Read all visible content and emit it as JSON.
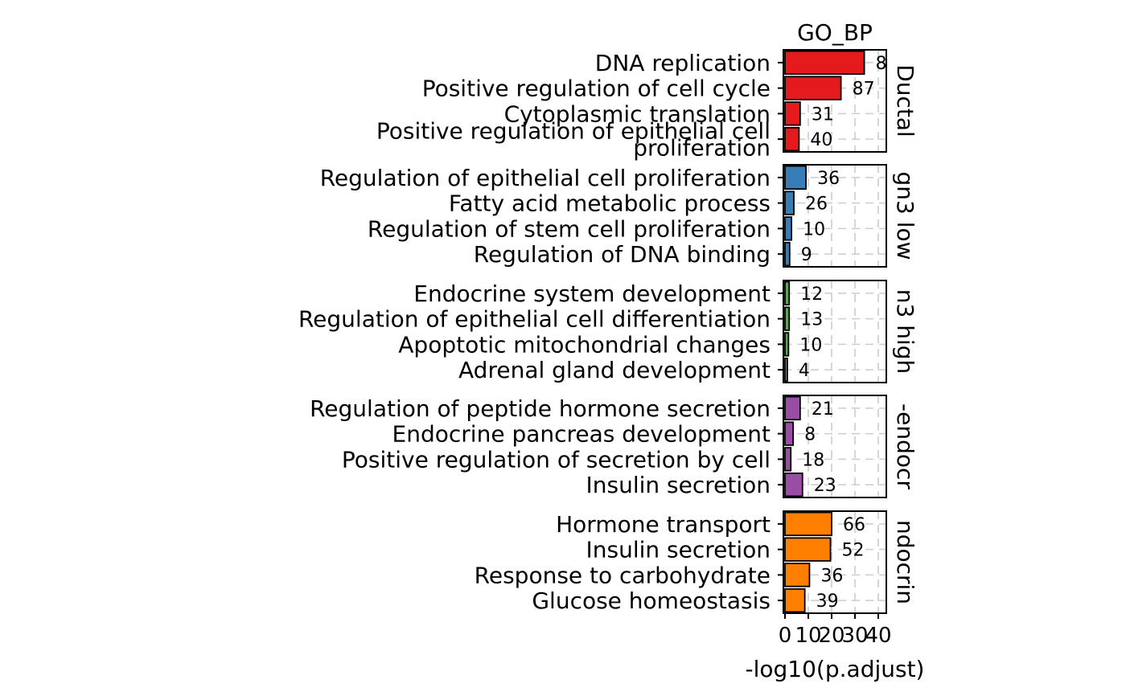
{
  "chart_data": {
    "type": "bar",
    "orientation": "horizontal",
    "title": "GO_BP",
    "xlabel": "-log10(p.adjust)",
    "xlim": [
      0,
      42
    ],
    "xticks": [
      0,
      10,
      20,
      30,
      40
    ],
    "xtick_labels": [
      "0",
      "10",
      "20",
      "30",
      "40"
    ],
    "grid": true,
    "facets": [
      {
        "label": "Ductal",
        "color": "#E41A1C",
        "categories": [
          "DNA replication",
          "Positive regulation of cell cycle",
          "Cytoplasmic translation",
          "Positive regulation of epithelial cell\nproliferation"
        ],
        "values": [
          34.0,
          24.0,
          6.5,
          6.0
        ],
        "counts": [
          "8",
          "87",
          "31",
          "40"
        ]
      },
      {
        "label": "gn3 low",
        "color": "#377EB8",
        "categories": [
          "Regulation of epithelial cell proliferation",
          "Fatty acid metabolic process",
          "Regulation of stem cell proliferation",
          "Regulation of DNA binding"
        ],
        "values": [
          9.0,
          3.8,
          2.8,
          2.0
        ],
        "counts": [
          "36",
          "26",
          "10",
          "9"
        ]
      },
      {
        "label": "n3 high",
        "color": "#4DAF4A",
        "categories": [
          "Endocrine system development",
          "Regulation of epithelial cell differentiation",
          "Apoptotic mitochondrial changes",
          "Adrenal gland development"
        ],
        "values": [
          1.8,
          1.8,
          1.5,
          1.0
        ],
        "counts": [
          "12",
          "13",
          "10",
          "4"
        ]
      },
      {
        "label": "-endocr",
        "color": "#984EA3",
        "categories": [
          "Regulation of peptide hormone secretion",
          "Endocrine pancreas development",
          "Positive regulation of secretion by cell",
          "Insulin secretion"
        ],
        "values": [
          6.5,
          3.5,
          2.5,
          7.5
        ],
        "counts": [
          "21",
          "8",
          "18",
          "23"
        ]
      },
      {
        "label": "ndocrin",
        "color": "#FF7F00",
        "categories": [
          "Hormone transport",
          "Insulin secretion",
          "Response to carbohydrate",
          "Glucose homeostasis"
        ],
        "values": [
          20.0,
          19.5,
          10.5,
          8.5
        ],
        "counts": [
          "66",
          "52",
          "36",
          "39"
        ]
      }
    ]
  }
}
